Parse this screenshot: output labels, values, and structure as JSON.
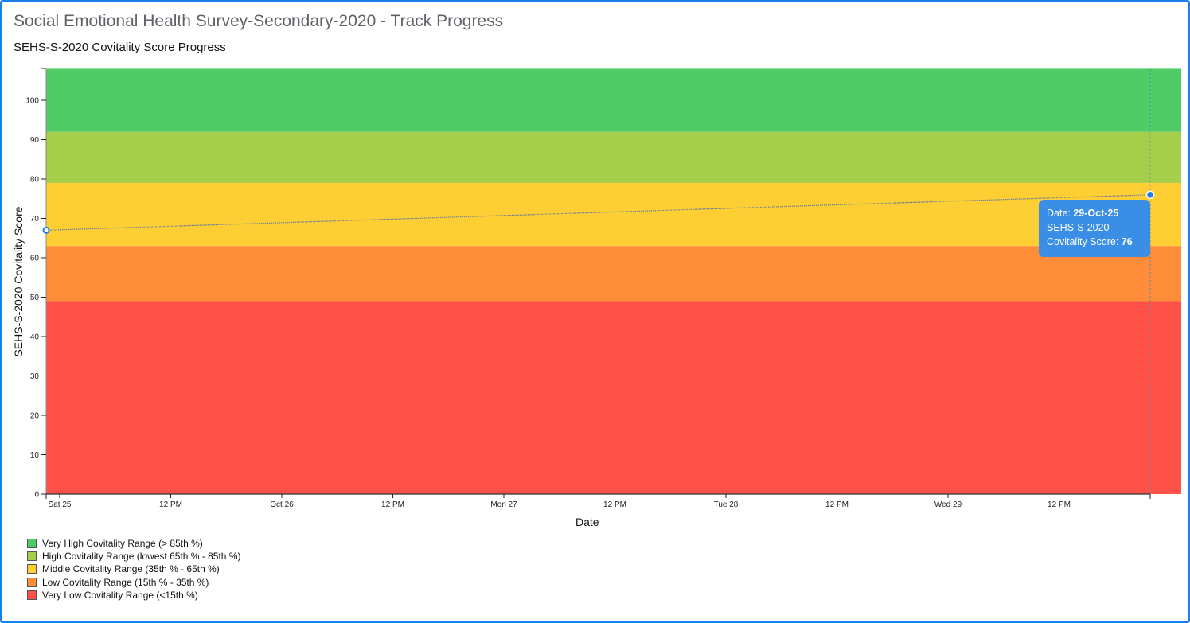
{
  "header": {
    "title": "Social Emotional Health Survey-Secondary-2020 - Track Progress",
    "subtitle": "SEHS-S-2020 Covitality Score Progress"
  },
  "tooltip": {
    "date_label": "Date: ",
    "date_value": "29-Oct-25",
    "series": "SEHS-S-2020",
    "score_label": "Covitality Score: ",
    "score_value": "76"
  },
  "legend": {
    "items": [
      {
        "label": "Very High Covitality Range (> 85th %)",
        "color": "#4fcb68"
      },
      {
        "label": "High Covitality Range (lowest 65th % - 85th %)",
        "color": "#a5ce4a"
      },
      {
        "label": "Middle Covitality Range (35th % - 65th %)",
        "color": "#fecf34"
      },
      {
        "label": "Low Covitality Range (15th % - 35th %)",
        "color": "#fe8c38"
      },
      {
        "label": "Very Low Covitality Range (<15th %)",
        "color": "#fe5248"
      }
    ]
  },
  "chart_data": {
    "type": "line",
    "title": "SEHS-S-2020 Covitality Score Progress",
    "xlabel": "Date",
    "ylabel": "SEHS-S-2020 Covitality Score",
    "ylim": [
      0,
      108
    ],
    "yticks": [
      0,
      10,
      20,
      30,
      40,
      50,
      60,
      70,
      80,
      90,
      100
    ],
    "xticks": [
      "Sat 25",
      "12 PM",
      "Oct 26",
      "12 PM",
      "Mon 27",
      "12 PM",
      "Tue 28",
      "12 PM",
      "Wed 29",
      "12 PM"
    ],
    "series": [
      {
        "name": "SEHS-S-2020",
        "x": [
          "25-Oct-25",
          "29-Oct-25"
        ],
        "values": [
          67,
          76
        ]
      }
    ],
    "bands": [
      {
        "name": "Very Low Covitality Range (<15th %)",
        "from": 0,
        "to": 49,
        "color": "#fe5248"
      },
      {
        "name": "Low Covitality Range (15th % - 35th %)",
        "from": 49,
        "to": 63,
        "color": "#fe8c38"
      },
      {
        "name": "Middle Covitality Range (35th % - 65th %)",
        "from": 63,
        "to": 79,
        "color": "#fecf34"
      },
      {
        "name": "High Covitality Range (lowest 65th % - 85th %)",
        "from": 79,
        "to": 92,
        "color": "#a5ce4a"
      },
      {
        "name": "Very High Covitality Range (> 85th %)",
        "from": 92,
        "to": 108,
        "color": "#4fcb68"
      }
    ],
    "grid": false,
    "legend_position": "bottom-left",
    "highlighted_point": {
      "date": "29-Oct-25",
      "value": 76
    }
  }
}
